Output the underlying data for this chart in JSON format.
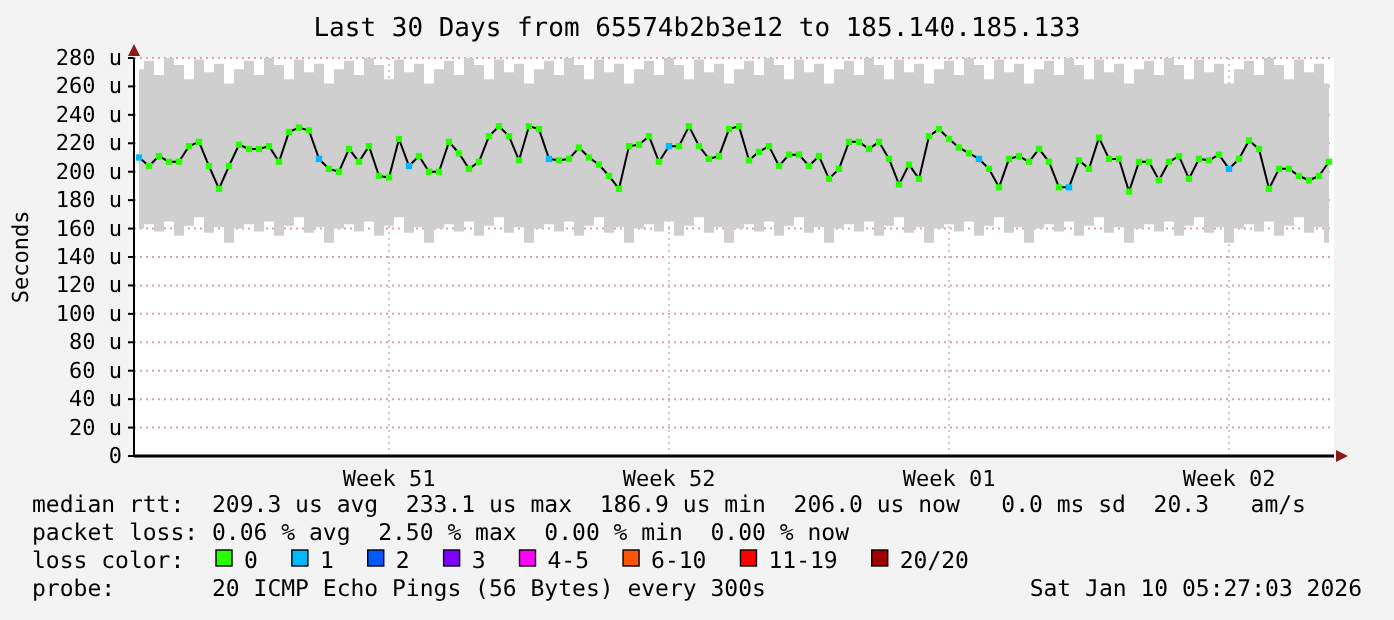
{
  "chart_data": {
    "type": "line",
    "title": "Last 30 Days from 65574b2b3e12 to 185.140.185.133",
    "ylabel": "Seconds",
    "legend_title": "loss color:",
    "legend": "bottom",
    "grid": true,
    "categories": [
      null,
      null,
      null,
      null,
      null,
      null,
      null,
      null,
      null,
      null,
      null,
      null,
      null,
      null,
      null,
      null,
      null,
      null,
      null,
      null,
      null,
      null,
      null,
      null,
      null,
      "Week 51",
      null,
      null,
      null,
      null,
      null,
      null,
      null,
      null,
      null,
      null,
      null,
      null,
      null,
      null,
      null,
      null,
      null,
      null,
      null,
      null,
      null,
      null,
      null,
      null,
      null,
      null,
      null,
      "Week 52",
      null,
      null,
      null,
      null,
      null,
      null,
      null,
      null,
      null,
      null,
      null,
      null,
      null,
      null,
      null,
      null,
      null,
      null,
      null,
      null,
      null,
      null,
      null,
      null,
      null,
      null,
      null,
      "Week 01",
      null,
      null,
      null,
      null,
      null,
      null,
      null,
      null,
      null,
      null,
      null,
      null,
      null,
      null,
      null,
      null,
      null,
      null,
      null,
      null,
      null,
      null,
      null,
      null,
      null,
      null,
      null,
      "Week 02",
      null,
      null,
      null,
      null,
      null,
      null,
      null,
      null,
      null,
      null
    ],
    "ylim": [
      0,
      280
    ],
    "yticks": [
      0,
      {
        "value": 20,
        "label": "20 u"
      },
      {
        "value": 40,
        "label": "40 u"
      },
      {
        "value": 60,
        "label": "60 u"
      },
      {
        "value": 80,
        "label": "80 u"
      },
      {
        "value": 100,
        "label": "100 u"
      },
      {
        "value": 120,
        "label": "120 u"
      },
      {
        "value": 140,
        "label": "140 u"
      },
      {
        "value": 160,
        "label": "160 u"
      },
      {
        "value": 180,
        "label": "180 u"
      },
      {
        "value": 200,
        "label": "200 u"
      },
      {
        "value": 220,
        "label": "220 u"
      },
      {
        "value": 240,
        "label": "240 u"
      },
      {
        "value": 260,
        "label": "260 u"
      },
      {
        "value": 280,
        "label": "280 u"
      }
    ],
    "annotations": [
      "median rtt:  209.3 us avg  233.1 us max  186.9 us min  206.0 us now   0.0 ms sd  20.3   am/s",
      "packet loss: 0.06 % avg  2.50 % max  0.00 % min  0.00 % now",
      "probe:       20 ICMP Echo Pings (56 Bytes) every 300s",
      "Sat Jan 10 05:27:03 2026"
    ],
    "series": [
      {
        "color": "#000000",
        "line_style": "solid",
        "values": [
          210,
          204,
          211,
          207,
          207,
          218,
          221,
          204,
          188,
          204,
          219,
          216,
          216,
          218,
          207,
          228,
          231,
          229,
          209,
          202,
          200,
          216,
          207,
          218,
          197,
          196,
          223,
          204,
          211,
          200,
          200,
          221,
          213,
          202,
          207,
          225,
          232,
          225,
          208,
          232,
          230,
          209,
          208,
          209,
          217,
          210,
          205,
          197,
          188,
          218,
          219,
          225,
          207,
          218,
          218,
          232,
          218,
          209,
          211,
          230,
          232,
          208,
          214,
          218,
          204,
          212,
          212,
          204,
          211,
          195,
          202,
          221,
          221,
          216,
          221,
          209,
          191,
          205,
          195,
          225,
          230,
          223,
          217,
          213,
          209,
          202,
          189,
          209,
          211,
          207,
          216,
          207,
          189,
          189,
          208,
          202,
          224,
          209,
          209,
          186,
          207,
          207,
          194,
          207,
          211,
          195,
          209,
          208,
          212,
          202,
          209,
          222,
          216,
          188,
          202,
          202,
          197,
          194,
          197,
          207
        ],
        "lower": [
          160,
          163,
          158,
          165,
          155,
          162,
          168,
          157,
          161,
          150,
          160,
          163,
          158,
          165,
          155,
          162,
          168,
          157,
          161,
          150,
          160,
          163,
          158,
          165,
          155,
          162,
          168,
          157,
          161,
          150,
          160,
          163,
          158,
          165,
          155,
          162,
          168,
          157,
          161,
          150,
          160,
          163,
          158,
          165,
          155,
          162,
          168,
          157,
          161,
          150,
          160,
          163,
          158,
          165,
          155,
          162,
          168,
          157,
          161,
          150,
          160,
          163,
          158,
          165,
          155,
          162,
          168,
          157,
          161,
          150,
          160,
          163,
          158,
          165,
          155,
          162,
          168,
          157,
          161,
          150,
          160,
          163,
          158,
          165,
          155,
          162,
          168,
          157,
          161,
          150,
          160,
          163,
          158,
          165,
          155,
          162,
          168,
          157,
          161,
          150,
          160,
          163,
          158,
          165,
          155,
          162,
          168,
          157,
          161,
          150,
          160,
          163,
          158,
          165,
          155,
          162,
          168,
          157,
          161,
          150
        ],
        "upper": [
          272,
          278,
          268,
          280,
          275,
          265,
          279,
          270,
          276,
          262,
          272,
          278,
          268,
          280,
          275,
          265,
          279,
          270,
          276,
          262,
          272,
          278,
          268,
          280,
          275,
          265,
          279,
          270,
          276,
          262,
          272,
          278,
          268,
          280,
          275,
          265,
          279,
          270,
          276,
          262,
          272,
          278,
          268,
          280,
          275,
          265,
          279,
          270,
          276,
          262,
          272,
          278,
          268,
          280,
          275,
          265,
          279,
          270,
          276,
          262,
          272,
          278,
          268,
          280,
          275,
          265,
          279,
          270,
          276,
          262,
          272,
          278,
          268,
          280,
          275,
          265,
          279,
          270,
          276,
          262,
          272,
          278,
          268,
          280,
          275,
          265,
          279,
          270,
          276,
          262,
          272,
          278,
          268,
          280,
          275,
          265,
          279,
          270,
          276,
          262,
          272,
          278,
          268,
          280,
          275,
          265,
          279,
          270,
          276,
          262,
          272,
          278,
          268,
          280,
          275,
          265,
          279,
          270,
          276,
          262
        ]
      },
      {
        "type": "scatter",
        "name": "0",
        "color": "#26ff00",
        "marker": "square",
        "values": [
          null,
          204,
          211,
          207,
          207,
          218,
          221,
          204,
          188,
          204,
          219,
          216,
          216,
          218,
          207,
          228,
          231,
          229,
          null,
          202,
          200,
          216,
          207,
          218,
          197,
          196,
          223,
          null,
          211,
          200,
          200,
          221,
          213,
          202,
          207,
          225,
          232,
          225,
          208,
          232,
          230,
          null,
          208,
          209,
          217,
          210,
          205,
          197,
          188,
          218,
          219,
          225,
          207,
          null,
          218,
          232,
          218,
          209,
          211,
          230,
          232,
          208,
          214,
          218,
          204,
          212,
          212,
          204,
          211,
          195,
          202,
          221,
          221,
          216,
          221,
          209,
          191,
          205,
          195,
          225,
          230,
          223,
          217,
          213,
          null,
          202,
          189,
          209,
          211,
          207,
          216,
          207,
          189,
          null,
          208,
          202,
          224,
          209,
          209,
          186,
          207,
          207,
          194,
          207,
          211,
          195,
          209,
          208,
          212,
          null,
          209,
          222,
          216,
          188,
          202,
          202,
          197,
          194,
          197,
          207
        ]
      },
      {
        "type": "scatter",
        "name": "1",
        "color": "#00b8ff",
        "marker": "square",
        "values": [
          210,
          null,
          null,
          null,
          null,
          null,
          null,
          null,
          null,
          null,
          null,
          null,
          null,
          null,
          null,
          null,
          null,
          null,
          209,
          null,
          null,
          null,
          null,
          null,
          null,
          null,
          null,
          204,
          null,
          null,
          null,
          null,
          null,
          null,
          null,
          null,
          null,
          null,
          null,
          null,
          null,
          209,
          null,
          null,
          null,
          null,
          null,
          null,
          null,
          null,
          null,
          null,
          null,
          218,
          null,
          null,
          null,
          null,
          null,
          null,
          null,
          null,
          null,
          null,
          null,
          null,
          null,
          null,
          null,
          null,
          null,
          null,
          null,
          null,
          null,
          null,
          null,
          null,
          null,
          null,
          null,
          null,
          null,
          null,
          209,
          null,
          null,
          null,
          null,
          null,
          null,
          null,
          null,
          189,
          null,
          null,
          null,
          null,
          null,
          null,
          null,
          null,
          null,
          null,
          null,
          null,
          null,
          null,
          null,
          202,
          null,
          null,
          null,
          null,
          null,
          null,
          null,
          null,
          null,
          null
        ]
      },
      {
        "name": "2",
        "color": "#0059ff",
        "values": [
          null,
          null,
          null,
          null,
          null,
          null,
          null,
          null,
          null,
          null,
          null,
          null,
          null,
          null,
          null,
          null,
          null,
          null,
          null,
          null,
          null,
          null,
          null,
          null,
          null,
          null,
          null,
          null,
          null,
          null,
          null,
          null,
          null,
          null,
          null,
          null,
          null,
          null,
          null,
          null,
          null,
          null,
          null,
          null,
          null,
          null,
          null,
          null,
          null,
          null,
          null,
          null,
          null,
          null,
          null,
          null,
          null,
          null,
          null,
          null,
          null,
          null,
          null,
          null,
          null,
          null,
          null,
          null,
          null,
          null,
          null,
          null,
          null,
          null,
          null,
          null,
          null,
          null,
          null,
          null,
          null,
          null,
          null,
          null,
          null,
          null,
          null,
          null,
          null,
          null,
          null,
          null,
          null,
          null,
          null,
          null,
          null,
          null,
          null,
          null,
          null,
          null,
          null,
          null,
          null,
          null,
          null,
          null,
          null,
          null,
          null,
          null,
          null,
          null,
          null,
          null,
          null,
          null,
          null,
          null
        ]
      },
      {
        "name": "3",
        "color": "#7e00ff",
        "values": [
          null,
          null,
          null,
          null,
          null,
          null,
          null,
          null,
          null,
          null,
          null,
          null,
          null,
          null,
          null,
          null,
          null,
          null,
          null,
          null,
          null,
          null,
          null,
          null,
          null,
          null,
          null,
          null,
          null,
          null,
          null,
          null,
          null,
          null,
          null,
          null,
          null,
          null,
          null,
          null,
          null,
          null,
          null,
          null,
          null,
          null,
          null,
          null,
          null,
          null,
          null,
          null,
          null,
          null,
          null,
          null,
          null,
          null,
          null,
          null,
          null,
          null,
          null,
          null,
          null,
          null,
          null,
          null,
          null,
          null,
          null,
          null,
          null,
          null,
          null,
          null,
          null,
          null,
          null,
          null,
          null,
          null,
          null,
          null,
          null,
          null,
          null,
          null,
          null,
          null,
          null,
          null,
          null,
          null,
          null,
          null,
          null,
          null,
          null,
          null,
          null,
          null,
          null,
          null,
          null,
          null,
          null,
          null,
          null,
          null,
          null,
          null,
          null,
          null,
          null,
          null,
          null,
          null,
          null,
          null
        ]
      },
      {
        "name": "4-5",
        "color": "#ff00ff",
        "values": [
          null,
          null,
          null,
          null,
          null,
          null,
          null,
          null,
          null,
          null,
          null,
          null,
          null,
          null,
          null,
          null,
          null,
          null,
          null,
          null,
          null,
          null,
          null,
          null,
          null,
          null,
          null,
          null,
          null,
          null,
          null,
          null,
          null,
          null,
          null,
          null,
          null,
          null,
          null,
          null,
          null,
          null,
          null,
          null,
          null,
          null,
          null,
          null,
          null,
          null,
          null,
          null,
          null,
          null,
          null,
          null,
          null,
          null,
          null,
          null,
          null,
          null,
          null,
          null,
          null,
          null,
          null,
          null,
          null,
          null,
          null,
          null,
          null,
          null,
          null,
          null,
          null,
          null,
          null,
          null,
          null,
          null,
          null,
          null,
          null,
          null,
          null,
          null,
          null,
          null,
          null,
          null,
          null,
          null,
          null,
          null,
          null,
          null,
          null,
          null,
          null,
          null,
          null,
          null,
          null,
          null,
          null,
          null,
          null,
          null,
          null,
          null,
          null,
          null,
          null,
          null,
          null,
          null,
          null,
          null
        ]
      },
      {
        "name": "6-10",
        "color": "#ff5500",
        "values": [
          null,
          null,
          null,
          null,
          null,
          null,
          null,
          null,
          null,
          null,
          null,
          null,
          null,
          null,
          null,
          null,
          null,
          null,
          null,
          null,
          null,
          null,
          null,
          null,
          null,
          null,
          null,
          null,
          null,
          null,
          null,
          null,
          null,
          null,
          null,
          null,
          null,
          null,
          null,
          null,
          null,
          null,
          null,
          null,
          null,
          null,
          null,
          null,
          null,
          null,
          null,
          null,
          null,
          null,
          null,
          null,
          null,
          null,
          null,
          null,
          null,
          null,
          null,
          null,
          null,
          null,
          null,
          null,
          null,
          null,
          null,
          null,
          null,
          null,
          null,
          null,
          null,
          null,
          null,
          null,
          null,
          null,
          null,
          null,
          null,
          null,
          null,
          null,
          null,
          null,
          null,
          null,
          null,
          null,
          null,
          null,
          null,
          null,
          null,
          null,
          null,
          null,
          null,
          null,
          null,
          null,
          null,
          null,
          null,
          null,
          null,
          null,
          null,
          null,
          null,
          null,
          null,
          null,
          null,
          null
        ]
      },
      {
        "name": "11-19",
        "color": "#ff0000",
        "values": [
          null,
          null,
          null,
          null,
          null,
          null,
          null,
          null,
          null,
          null,
          null,
          null,
          null,
          null,
          null,
          null,
          null,
          null,
          null,
          null,
          null,
          null,
          null,
          null,
          null,
          null,
          null,
          null,
          null,
          null,
          null,
          null,
          null,
          null,
          null,
          null,
          null,
          null,
          null,
          null,
          null,
          null,
          null,
          null,
          null,
          null,
          null,
          null,
          null,
          null,
          null,
          null,
          null,
          null,
          null,
          null,
          null,
          null,
          null,
          null,
          null,
          null,
          null,
          null,
          null,
          null,
          null,
          null,
          null,
          null,
          null,
          null,
          null,
          null,
          null,
          null,
          null,
          null,
          null,
          null,
          null,
          null,
          null,
          null,
          null,
          null,
          null,
          null,
          null,
          null,
          null,
          null,
          null,
          null,
          null,
          null,
          null,
          null,
          null,
          null,
          null,
          null,
          null,
          null,
          null,
          null,
          null,
          null,
          null,
          null,
          null,
          null,
          null,
          null,
          null,
          null,
          null,
          null,
          null,
          null
        ]
      },
      {
        "name": "20/20",
        "color": "#a10000",
        "values": [
          null,
          null,
          null,
          null,
          null,
          null,
          null,
          null,
          null,
          null,
          null,
          null,
          null,
          null,
          null,
          null,
          null,
          null,
          null,
          null,
          null,
          null,
          null,
          null,
          null,
          null,
          null,
          null,
          null,
          null,
          null,
          null,
          null,
          null,
          null,
          null,
          null,
          null,
          null,
          null,
          null,
          null,
          null,
          null,
          null,
          null,
          null,
          null,
          null,
          null,
          null,
          null,
          null,
          null,
          null,
          null,
          null,
          null,
          null,
          null,
          null,
          null,
          null,
          null,
          null,
          null,
          null,
          null,
          null,
          null,
          null,
          null,
          null,
          null,
          null,
          null,
          null,
          null,
          null,
          null,
          null,
          null,
          null,
          null,
          null,
          null,
          null,
          null,
          null,
          null,
          null,
          null,
          null,
          null,
          null,
          null,
          null,
          null,
          null,
          null,
          null,
          null,
          null,
          null,
          null,
          null,
          null,
          null,
          null,
          null,
          null,
          null,
          null,
          null,
          null,
          null,
          null,
          null,
          null,
          null
        ]
      }
    ]
  }
}
